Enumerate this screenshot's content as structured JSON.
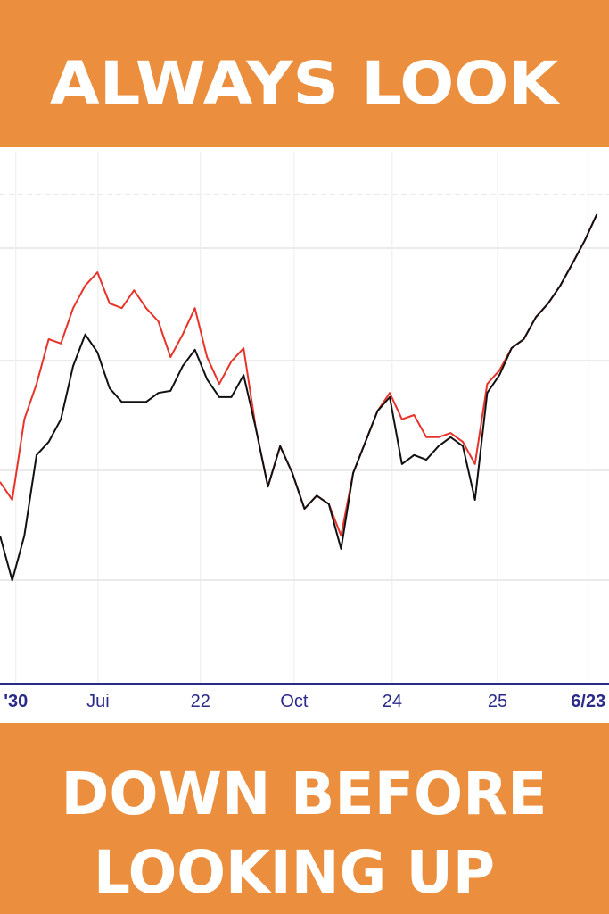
{
  "header": {
    "title": "ALWAYS LOOK"
  },
  "footer": {
    "lines": [
      "DOWN BEFORE",
      "LOOKING UP"
    ]
  },
  "chart_data": {
    "type": "line",
    "x": [
      0,
      2,
      4,
      6,
      8,
      10,
      12,
      14,
      16,
      18,
      20,
      22,
      24,
      26,
      28,
      30,
      32,
      34,
      36,
      38,
      40,
      42,
      44,
      46,
      48,
      50,
      52,
      54,
      56,
      58,
      60,
      62,
      64,
      66,
      68,
      70,
      72,
      74,
      76,
      78,
      80,
      82,
      84,
      86,
      88,
      90,
      92,
      94,
      96,
      98
    ],
    "xlim": [
      0,
      100
    ],
    "ylim": [
      0,
      100
    ],
    "xticks": [
      {
        "value": 2.6,
        "label": "'30"
      },
      {
        "value": 16.1,
        "label": "Jui"
      },
      {
        "value": 32.9,
        "label": "22"
      },
      {
        "value": 48.3,
        "label": "Oct"
      },
      {
        "value": 64.4,
        "label": "24"
      },
      {
        "value": 81.7,
        "label": "25"
      },
      {
        "value": 96.6,
        "label": "6/23"
      }
    ],
    "series": [
      {
        "color": "#e8332b",
        "values": [
          37.3,
          33.9,
          49.2,
          55.9,
          64.4,
          63.6,
          70.3,
          74.6,
          77.1,
          71.2,
          70.3,
          73.7,
          70.3,
          67.8,
          61.0,
          65.3,
          70.3,
          61.0,
          55.9,
          60.2,
          62.7,
          47.5,
          36.4,
          44.1,
          39.0,
          32.2,
          34.7,
          33.1,
          27.1,
          39.0,
          44.9,
          50.8,
          54.2,
          49.2,
          50.0,
          45.8,
          45.8,
          46.6,
          44.9,
          40.7,
          55.9,
          58.5,
          62.7,
          64.4,
          68.6,
          71.2,
          74.6,
          78.8,
          83.1,
          88.1
        ]
      },
      {
        "color": "#111111",
        "values": [
          27.1,
          18.6,
          27.1,
          42.4,
          44.9,
          49.2,
          59.3,
          65.3,
          61.9,
          55.1,
          52.5,
          52.5,
          52.5,
          54.2,
          54.6,
          59.3,
          62.4,
          56.8,
          53.4,
          53.4,
          57.6,
          47.5,
          36.4,
          44.1,
          39.0,
          32.2,
          34.7,
          33.1,
          24.6,
          39.0,
          44.9,
          50.8,
          53.4,
          40.7,
          42.4,
          41.5,
          44.1,
          45.8,
          44.1,
          33.9,
          54.2,
          57.6,
          62.7,
          64.4,
          68.6,
          71.2,
          74.6,
          78.8,
          83.1,
          88.1
        ]
      }
    ]
  }
}
